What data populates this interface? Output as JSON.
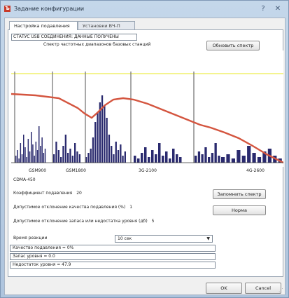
{
  "window": {
    "title": "Задание конфигурации",
    "app_icon": "Ъ",
    "help_icon": "?",
    "close_icon": "✕"
  },
  "tabs": [
    {
      "label": "Настройка подавления",
      "active": true
    },
    {
      "label": "Установки ВЧ-П",
      "active": false
    }
  ],
  "status_text": "СТАТУС USB СОЕДИНЕНИЯ: ДАННЫЕ ПОЛУЧЕНЫ",
  "spectrum_title": "Спектр частотных диапазонов базовых станций",
  "buttons": {
    "reset_spectrum": "Обновить спектр",
    "save_spectrum": "Запомнить спектр",
    "norm": "Норма",
    "ok": "OK",
    "cancel": "Cancel"
  },
  "chart_data": {
    "type": "bar",
    "title": "Спектр частотных диапазонов базовых станций",
    "xlabel": "",
    "ylabel": "",
    "band_labels": [
      "GSM900",
      "GSM1800",
      "3G-2100",
      "4G-2600"
    ],
    "bottom_label": "CDMA-450",
    "colors": {
      "bars": "#2a2a6e",
      "curve": "#d4553f",
      "threshold": "#f0f06a",
      "markers": "#7a7a7a"
    },
    "grid": false
  },
  "form": {
    "coef_label": "Коэффициент подавления",
    "coef_value": "20",
    "quality_label": "Допустимое отклонение качества подавления (%)",
    "quality_value": "1",
    "level_label": "Допустимое отклонение запаса или недостатка уровня (дб)",
    "level_value": "5",
    "reaction_label": "Время реакции",
    "reaction_value": "10 сек",
    "quality_readout": "Качество подавления = 0%",
    "reserve_readout": "Запас уровня = 0.0",
    "shortage_readout": "Недостаток уровня = 47.9"
  }
}
